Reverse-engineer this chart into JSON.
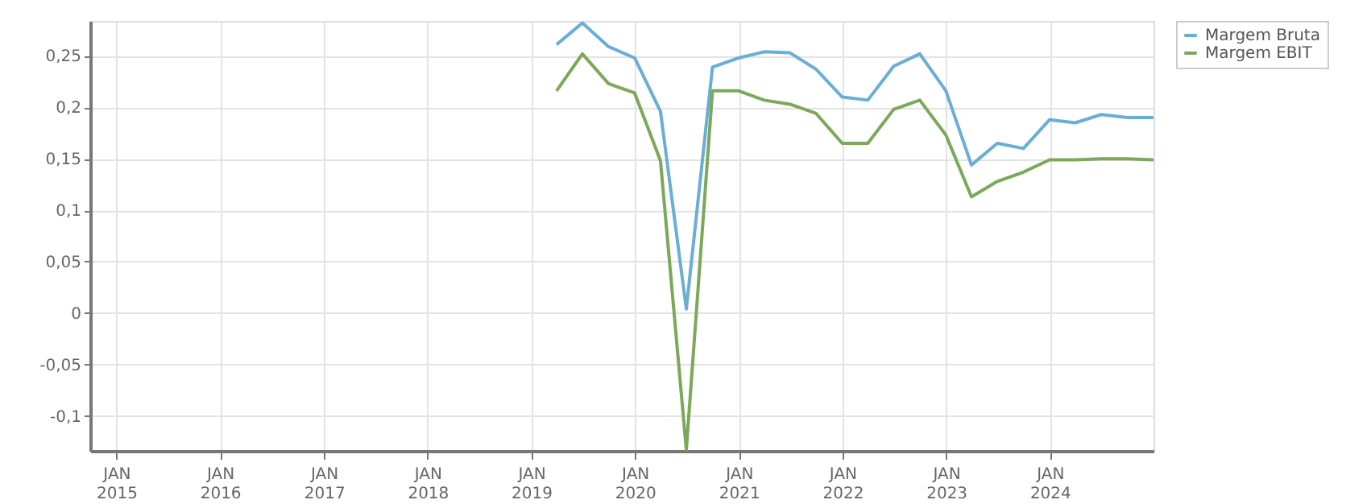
{
  "chart_data": {
    "type": "line",
    "x": [
      "2019-03-31",
      "2019-06-30",
      "2019-09-30",
      "2019-12-31",
      "2020-03-31",
      "2020-06-30",
      "2020-09-30",
      "2020-12-31",
      "2021-03-31",
      "2021-06-30",
      "2021-09-30",
      "2021-12-31",
      "2022-03-31",
      "2022-06-30",
      "2022-09-30",
      "2022-12-31",
      "2023-03-31",
      "2023-06-30",
      "2023-09-30",
      "2023-12-31",
      "2024-03-31",
      "2024-06-30",
      "2024-09-30",
      "2024-12-31"
    ],
    "series": [
      {
        "name": "Margem Bruta",
        "color": "#6aaed6",
        "values": [
          0.261,
          0.282,
          0.259,
          0.248,
          0.196,
          0.004,
          0.239,
          0.248,
          0.254,
          0.253,
          0.237,
          0.21,
          0.207,
          0.24,
          0.252,
          0.216,
          0.144,
          0.165,
          0.16,
          0.188,
          0.185,
          0.193,
          0.19,
          0.19
        ]
      },
      {
        "name": "Margem EBIT",
        "color": "#7ca85a",
        "values": [
          0.216,
          0.252,
          0.223,
          0.214,
          0.148,
          -0.133,
          0.216,
          0.216,
          0.207,
          0.203,
          0.194,
          0.165,
          0.165,
          0.198,
          0.207,
          0.173,
          0.113,
          0.128,
          0.137,
          0.149,
          0.149,
          0.15,
          0.15,
          0.149
        ]
      }
    ],
    "xlim": [
      "2014-10-01",
      "2024-12-31"
    ],
    "xticks": [
      {
        "value": "2015-01-01",
        "label": "JAN\n2015"
      },
      {
        "value": "2016-01-01",
        "label": "JAN\n2016"
      },
      {
        "value": "2017-01-01",
        "label": "JAN\n2017"
      },
      {
        "value": "2018-01-01",
        "label": "JAN\n2018"
      },
      {
        "value": "2019-01-01",
        "label": "JAN\n2019"
      },
      {
        "value": "2020-01-01",
        "label": "JAN\n2020"
      },
      {
        "value": "2021-01-01",
        "label": "JAN\n2021"
      },
      {
        "value": "2022-01-01",
        "label": "JAN\n2022"
      },
      {
        "value": "2023-01-01",
        "label": "JAN\n2023"
      },
      {
        "value": "2024-01-01",
        "label": "JAN\n2024"
      }
    ],
    "ylim": [
      -0.134,
      0.284
    ],
    "yticks": [
      {
        "value": -0.1,
        "label": "-0,1"
      },
      {
        "value": -0.05,
        "label": "-0,05"
      },
      {
        "value": 0,
        "label": "0"
      },
      {
        "value": 0.05,
        "label": "0,05"
      },
      {
        "value": 0.1,
        "label": "0,1"
      },
      {
        "value": 0.15,
        "label": "0,15"
      },
      {
        "value": 0.2,
        "label": "0,2"
      },
      {
        "value": 0.25,
        "label": "0,25"
      }
    ],
    "grid": true,
    "legend": "top right",
    "marker": "none",
    "line_style": "solid"
  }
}
